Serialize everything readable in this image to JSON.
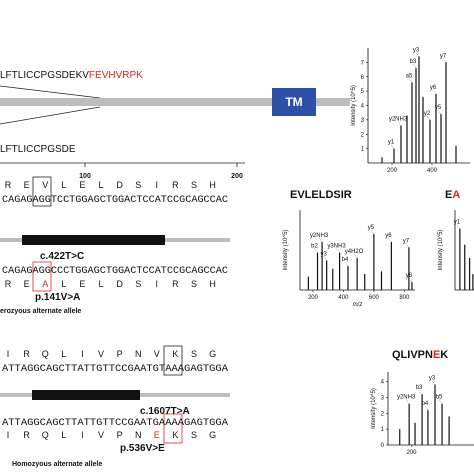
{
  "mutant_color": "#e32222",
  "panel_a": {
    "sequence_long": {
      "normal": "LFTLICCPGSDEKV",
      "mutant": "FEVHVRPK"
    },
    "sequence_short": "LFTLICCPGSDE",
    "domain": "TM",
    "axis_ticks": [
      100,
      200
    ],
    "spectrum": {
      "ylabel": "Intensity (10^5)",
      "xlim": [
        80,
        590
      ],
      "ylim": [
        0,
        8
      ],
      "xticks": [
        200,
        400
      ],
      "yticks": [
        1,
        2,
        3,
        4,
        5,
        6,
        7
      ],
      "peaks": [
        {
          "mz": 150,
          "intensity": 0.4
        },
        {
          "mz": 210,
          "intensity": 1.0,
          "label": "y1"
        },
        {
          "mz": 245,
          "intensity": 2.6,
          "label": "y2NH3"
        },
        {
          "mz": 275,
          "intensity": 3.3
        },
        {
          "mz": 300,
          "intensity": 5.6,
          "label": "a5"
        },
        {
          "mz": 320,
          "intensity": 6.6,
          "label": "b3"
        },
        {
          "mz": 335,
          "intensity": 7.4,
          "label": "y3"
        },
        {
          "mz": 355,
          "intensity": 4.6
        },
        {
          "mz": 390,
          "intensity": 3.0,
          "label": "y2"
        },
        {
          "mz": 420,
          "intensity": 4.8,
          "label": "y6"
        },
        {
          "mz": 445,
          "intensity": 3.4,
          "label": "y5"
        },
        {
          "mz": 470,
          "intensity": 7.0,
          "label": "y7"
        },
        {
          "mz": 520,
          "intensity": 1.2
        }
      ]
    }
  },
  "panel_b": {
    "residues_before": [
      "R",
      "E"
    ],
    "residue_ref": "V",
    "residues_after": [
      "L",
      "E",
      "L",
      "D",
      "S",
      "I",
      "R",
      "S",
      "H"
    ],
    "dna_ref": "CAGAGAGGTCCTGGAGCTGGACTCCATCCGCAGCCAC",
    "cdna_change": "c.422T>C",
    "dna_alt": "CAGAGAGGCCCTGGAGCTGGACTCCATCCGCAGCCAC",
    "residue_alt": "A",
    "protein_change": "p.141V>A",
    "zygosity": "erozyous alternate allele",
    "peptide": "EVLELDSIR",
    "spectrum": {
      "ylabel": "Intensity (10^5)",
      "xlabel": "m/z",
      "xlim": [
        115,
        870
      ],
      "ylim": [
        0,
        6
      ],
      "xticks": [
        200,
        400,
        600,
        800
      ],
      "peaks": [
        {
          "mz": 170,
          "intensity": 1.0
        },
        {
          "mz": 230,
          "intensity": 2.8,
          "label": "b2"
        },
        {
          "mz": 260,
          "intensity": 3.6,
          "label": "y2NH3"
        },
        {
          "mz": 290,
          "intensity": 2.2,
          "label": "y3"
        },
        {
          "mz": 330,
          "intensity": 1.6
        },
        {
          "mz": 375,
          "intensity": 2.8,
          "label": "y3NH3"
        },
        {
          "mz": 430,
          "intensity": 1.8,
          "label": "b4"
        },
        {
          "mz": 490,
          "intensity": 2.4,
          "label": "y4H2O"
        },
        {
          "mz": 540,
          "intensity": 1.2
        },
        {
          "mz": 600,
          "intensity": 4.2,
          "label": "y5"
        },
        {
          "mz": 650,
          "intensity": 1.4
        },
        {
          "mz": 715,
          "intensity": 3.6,
          "label": "y6"
        },
        {
          "mz": 830,
          "intensity": 3.2,
          "label": "y7"
        },
        {
          "mz": 850,
          "intensity": 0.6,
          "label": "y8"
        }
      ]
    },
    "peptide_alt": {
      "normal": "E",
      "mutant": "A"
    },
    "spectrum_alt": {
      "ylabel": "Intensity (10^5)",
      "xlim": [
        100,
        500
      ],
      "ylim": [
        0,
        6
      ],
      "peaks": [
        {
          "mz": 130,
          "intensity": 4.6,
          "label": "y1"
        },
        {
          "mz": 160,
          "intensity": 3.4
        },
        {
          "mz": 190,
          "intensity": 2.4
        },
        {
          "mz": 210,
          "intensity": 1.2
        }
      ]
    }
  },
  "panel_c": {
    "residues_before": [
      "I",
      "R",
      "Q",
      "L",
      "I",
      "V",
      "P",
      "N"
    ],
    "residue_ref": "V",
    "residues_after": [
      "K",
      "S",
      "G"
    ],
    "dna_ref": "ATTAGGCAGCTTATTGTTCCGAATGTAAAGAGTGGA",
    "cdna_change": "c.1607T>A",
    "dna_alt": "ATTAGGCAGCTTATTGTTCCGAATGAAAAGAGTGGA",
    "residue_alt": "E",
    "protein_change": "p.536V>E",
    "zygosity": "Homozyous alternate allele",
    "peptide": {
      "before": "QLIVPN",
      "mutant": "E",
      "after": "K"
    },
    "spectrum": {
      "ylabel": "Intensity (10^5)",
      "xlim": [
        100,
        500
      ],
      "ylim": [
        0,
        4.6
      ],
      "xticks": [
        200
      ],
      "yticks": [
        0,
        1,
        2,
        3,
        4
      ],
      "peaks": [
        {
          "mz": 150,
          "intensity": 1.0
        },
        {
          "mz": 190,
          "intensity": 2.6,
          "label": "y2NH3"
        },
        {
          "mz": 215,
          "intensity": 1.4
        },
        {
          "mz": 245,
          "intensity": 3.2,
          "label": "b3"
        },
        {
          "mz": 270,
          "intensity": 2.2,
          "label": "b4"
        },
        {
          "mz": 300,
          "intensity": 3.8,
          "label": "y3"
        },
        {
          "mz": 330,
          "intensity": 2.6,
          "label": "b5"
        },
        {
          "mz": 360,
          "intensity": 1.8
        }
      ]
    }
  }
}
